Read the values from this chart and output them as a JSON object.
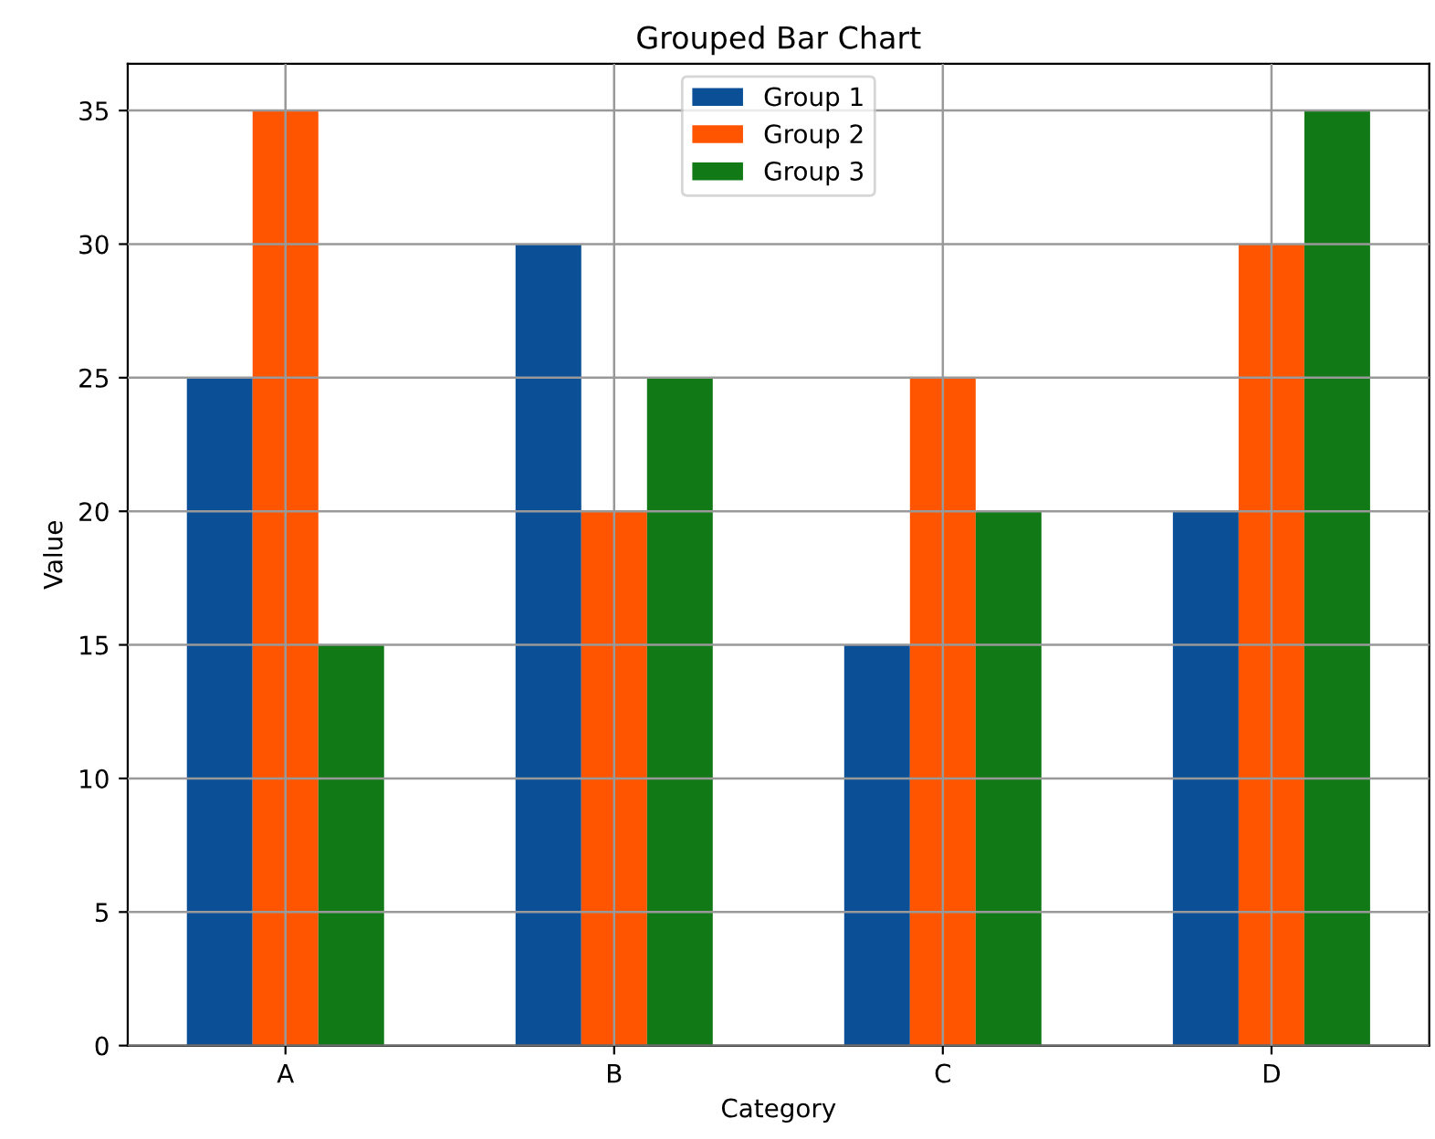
{
  "chart_data": {
    "type": "bar",
    "title": "Grouped Bar Chart",
    "xlabel": "Category",
    "ylabel": "Value",
    "categories": [
      "A",
      "B",
      "C",
      "D"
    ],
    "series": [
      {
        "name": "Group 1",
        "color": "#0b4f96",
        "values": [
          25,
          30,
          15,
          20
        ]
      },
      {
        "name": "Group 2",
        "color": "#ff5500",
        "values": [
          35,
          20,
          25,
          30
        ]
      },
      {
        "name": "Group 3",
        "color": "#117a16",
        "values": [
          15,
          25,
          20,
          35
        ]
      }
    ],
    "ylim": [
      0,
      36.75
    ],
    "yticks": [
      0,
      5,
      10,
      15,
      20,
      25,
      30,
      35
    ],
    "grid": true,
    "legend": "top"
  }
}
